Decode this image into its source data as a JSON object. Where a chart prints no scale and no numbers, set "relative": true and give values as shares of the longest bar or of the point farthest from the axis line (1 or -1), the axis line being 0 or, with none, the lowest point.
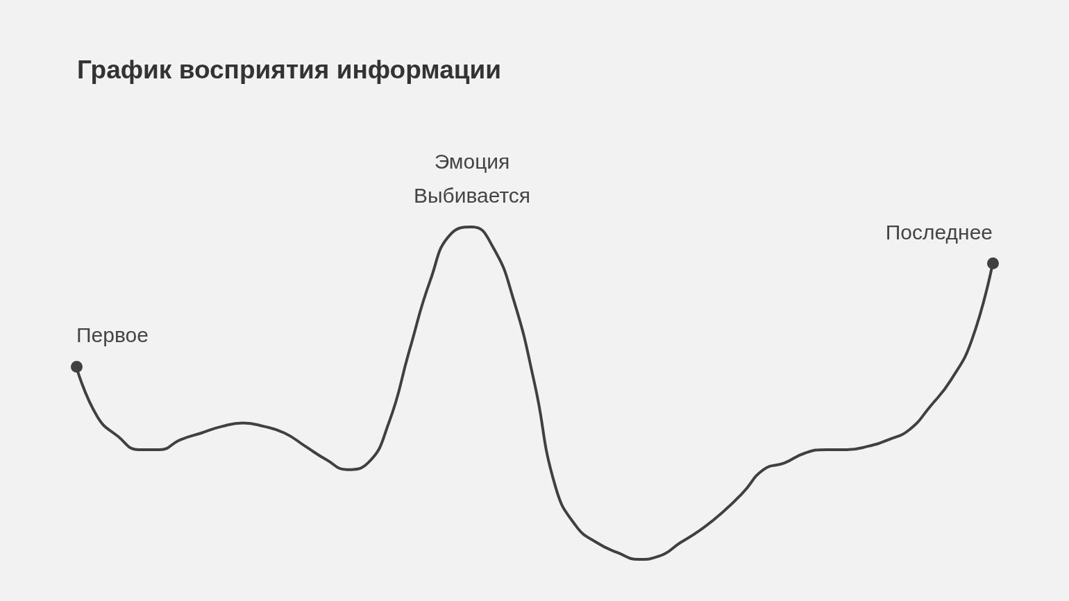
{
  "chart_data": {
    "type": "line",
    "title": "График восприятия информации",
    "relative": true,
    "categories": [
      null,
      null,
      null,
      null,
      null,
      null,
      null,
      null,
      null,
      null,
      null,
      null,
      null,
      null,
      null,
      null,
      null,
      null,
      null,
      null,
      null,
      null,
      null,
      null,
      null,
      null,
      null,
      null,
      null,
      null,
      null,
      null,
      null,
      null,
      null,
      null,
      null,
      null,
      null,
      null,
      null,
      null,
      null,
      null,
      null
    ],
    "series": [
      {
        "color": "#404040",
        "line_style": "solid",
        "values": [
          0.58,
          0.43,
          0.37,
          0.33,
          0.33,
          0.36,
          0.38,
          0.4,
          0.41,
          0.4,
          0.38,
          0.34,
          0.3,
          0.27,
          0.29,
          0.41,
          0.63,
          0.84,
          0.98,
          1.0,
          0.94,
          0.78,
          0.53,
          0.22,
          0.1,
          0.05,
          0.02,
          0,
          0.01,
          0.05,
          0.09,
          0.14,
          0.2,
          0.27,
          0.29,
          0.32,
          0.33,
          0.33,
          0.34,
          0.36,
          0.39,
          0.46,
          0.54,
          0.66,
          0.89
        ]
      }
    ],
    "annotations": [
      "Первое",
      {
        "text": "Эмоция\nВыбивается",
        "y": 1.0
      },
      "Последнее"
    ]
  }
}
